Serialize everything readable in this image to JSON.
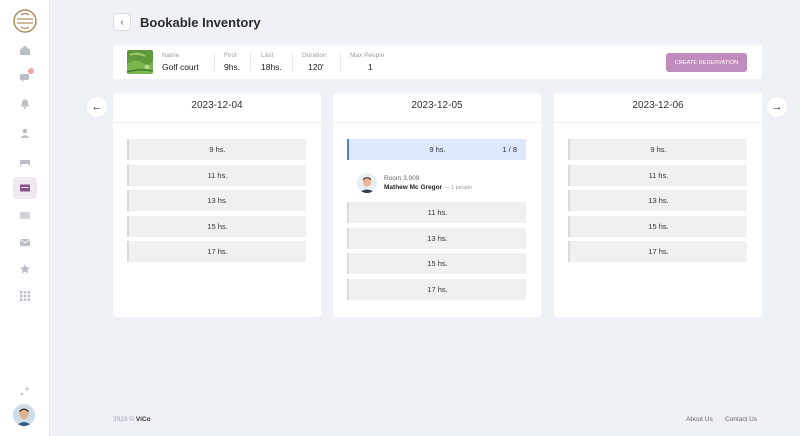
{
  "sidebar": {
    "items": [
      {
        "name": "home-icon"
      },
      {
        "name": "messages-icon",
        "badge": "1"
      },
      {
        "name": "bell-icon"
      },
      {
        "name": "user-icon"
      },
      {
        "name": "bed-icon"
      },
      {
        "name": "inventory-icon",
        "active": true
      },
      {
        "name": "card-icon"
      },
      {
        "name": "mail-icon"
      },
      {
        "name": "star-icon"
      },
      {
        "name": "apps-grid-icon"
      }
    ]
  },
  "header": {
    "title": "Bookable Inventory"
  },
  "info": {
    "name_label": "Name",
    "name_value": "Golf court",
    "first_label": "First",
    "first_value": "9hs.",
    "last_label": "Last",
    "last_value": "18hs.",
    "duration_label": "Duration",
    "duration_value": "120'",
    "max_label": "Max People",
    "max_value": "1",
    "create_button": "CREATE RESERVATION"
  },
  "days": [
    {
      "date": "2023-12-04",
      "slots": [
        "9 hs.",
        "11 hs.",
        "13 hs.",
        "15 hs.",
        "17 hs."
      ]
    },
    {
      "date": "2023-12-05",
      "slots": [
        "9 hs.",
        "11 hs.",
        "13 hs.",
        "15 hs.",
        "17 hs."
      ],
      "selected_count": "1 / 8",
      "reservation": {
        "room": "Room 3.009",
        "guest": "Mathew Mc Gregor",
        "people": "— 1 people"
      }
    },
    {
      "date": "2023-12-06",
      "slots": [
        "9 hs.",
        "11 hs.",
        "13 hs.",
        "15 hs.",
        "17 hs."
      ]
    }
  ],
  "footer": {
    "copyright": "2023 ©",
    "brand": "ViCo",
    "about": "About Us",
    "contact": "Contact Us"
  },
  "colors": {
    "accent": "#c08bbd",
    "selected_slot": "#dde8fd",
    "selected_border": "#5a79c5"
  }
}
